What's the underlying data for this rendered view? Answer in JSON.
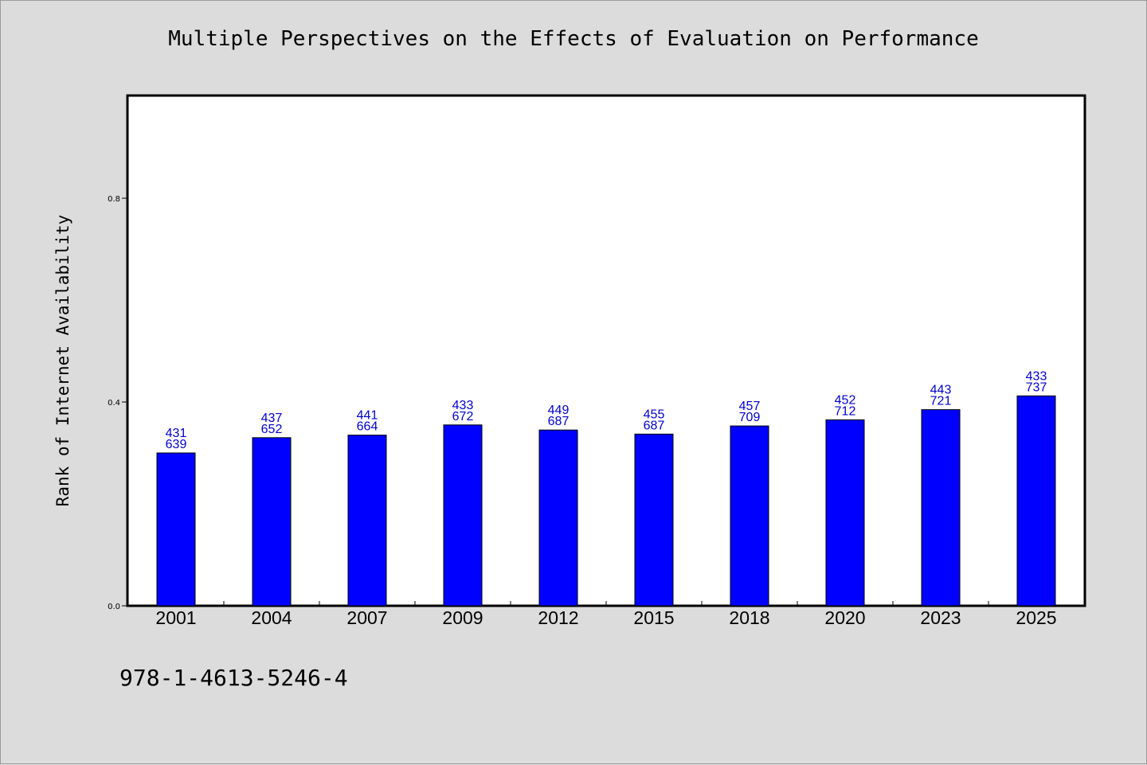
{
  "chart_data": {
    "type": "bar",
    "title": "Multiple Perspectives on the Effects of Evaluation on Performance",
    "xlabel": "",
    "ylabel": "Rank of Internet Availability",
    "categories": [
      "2001",
      "2004",
      "2007",
      "2009",
      "2012",
      "2015",
      "2018",
      "2020",
      "2023",
      "2025"
    ],
    "values": [
      0.3,
      0.33,
      0.335,
      0.355,
      0.345,
      0.337,
      0.353,
      0.365,
      0.385,
      0.412
    ],
    "data_labels": [
      [
        "431",
        "639"
      ],
      [
        "437",
        "652"
      ],
      [
        "441",
        "664"
      ],
      [
        "433",
        "672"
      ],
      [
        "449",
        "687"
      ],
      [
        "455",
        "687"
      ],
      [
        "457",
        "709"
      ],
      [
        "452",
        "712"
      ],
      [
        "443",
        "721"
      ],
      [
        "433",
        "737"
      ]
    ],
    "ylim": [
      0,
      1.0
    ],
    "yticks": [
      "0.0",
      "0.4",
      "0.8"
    ],
    "ytick_values": [
      0,
      0.4,
      0.8
    ],
    "bar_color": "#0000ff",
    "label_color": "#0000cc",
    "grid": false,
    "legend": "none"
  },
  "footer": {
    "isbn": "978-1-4613-5246-4"
  }
}
